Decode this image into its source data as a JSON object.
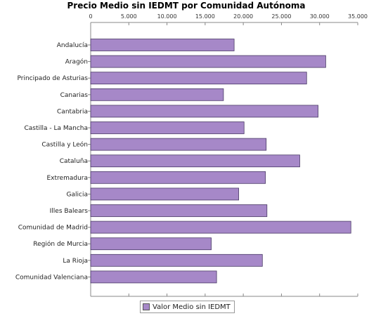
{
  "chart_data": {
    "type": "bar",
    "orientation": "horizontal",
    "title": "Precio Medio sin IEDMT por Comunidad Autónoma",
    "categories": [
      "Andalucía",
      "Aragón",
      "Principado de Asturias",
      "Canarias",
      "Cantabria",
      "Castilla - La Mancha",
      "Castilla y León",
      "Cataluña",
      "Extremadura",
      "Galicia",
      "Illes Balears",
      "Comunidad de Madrid",
      "Región de Murcia",
      "La Rioja",
      "Comunidad Valenciana"
    ],
    "series": [
      {
        "name": "Valor Medio sin IEDMT",
        "values": [
          18800,
          30800,
          28300,
          17400,
          29800,
          20100,
          23000,
          27400,
          22900,
          19400,
          23100,
          34100,
          15800,
          22500,
          16500
        ]
      }
    ],
    "xlim": [
      0,
      35000
    ],
    "x_ticks": [
      0,
      5000,
      10000,
      15000,
      20000,
      25000,
      30000,
      35000
    ],
    "x_tick_labels": [
      "0",
      "5.000",
      "10.000",
      "15.000",
      "20.000",
      "25.000",
      "30.000",
      "35.000"
    ],
    "xlabel": "",
    "ylabel": "",
    "grid": false,
    "legend": "bottom",
    "colors": {
      "bar_fill": "#a688c8",
      "bar_stroke": "#4a3a66",
      "axis": "#888888"
    }
  }
}
